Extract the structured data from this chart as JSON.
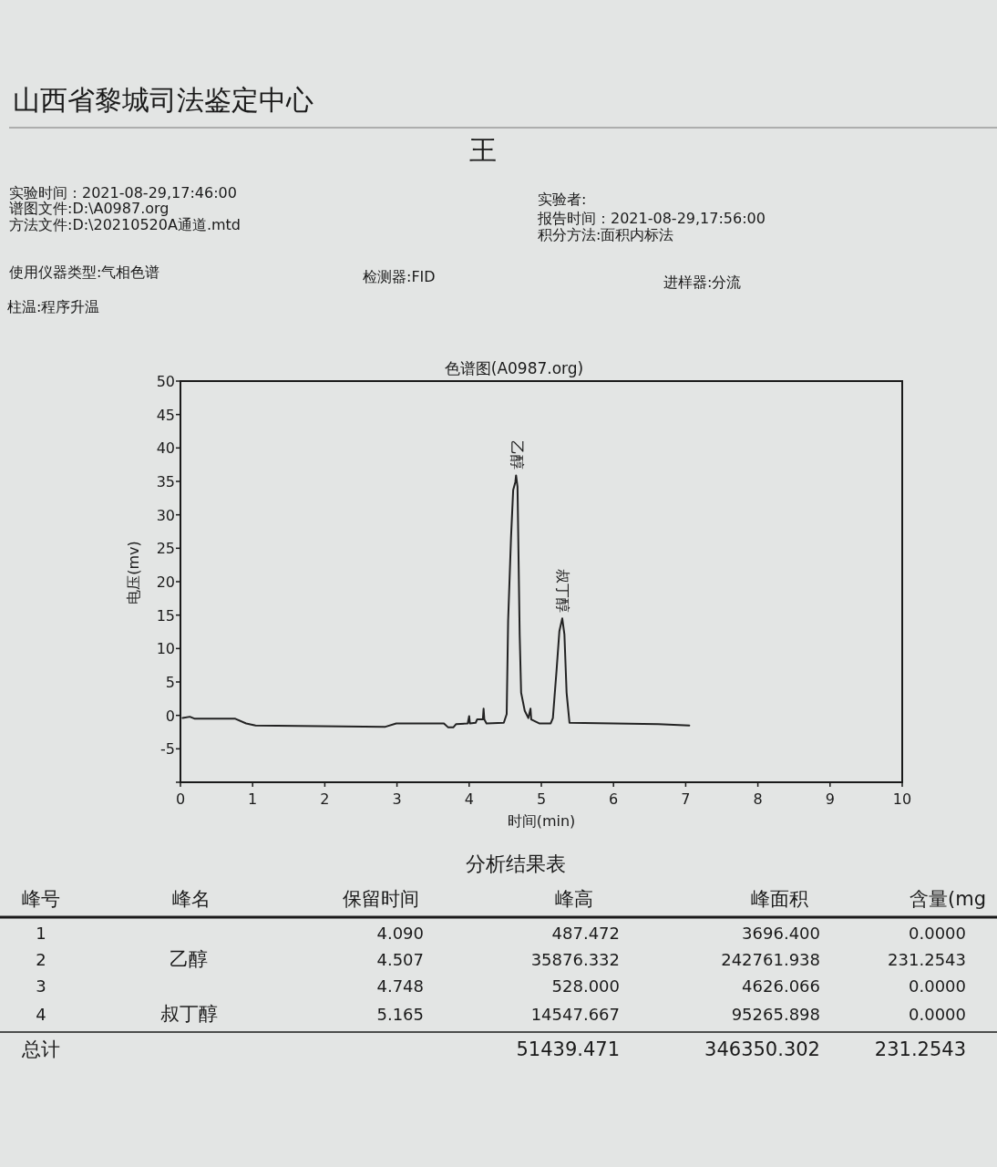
{
  "chart_data": {
    "type": "line",
    "title": "色谱图(A0987.org)",
    "xlabel": "时间(min)",
    "ylabel": "电压(mv)",
    "xlim": [
      0,
      10
    ],
    "xticks": [
      0,
      1,
      2,
      3,
      4,
      5,
      6,
      7,
      8,
      9,
      10
    ],
    "ylim": [
      -10,
      50
    ],
    "yticks": [
      {
        "value": -10,
        "label": null
      },
      -5,
      0,
      5,
      10,
      15,
      20,
      25,
      30,
      35,
      40,
      45,
      50
    ],
    "series": [
      {
        "color": "#222222",
        "x": [
          0.03,
          0.13,
          0.2,
          0.76,
          0.91,
          1.04,
          2.84,
          2.99,
          3.65,
          3.71,
          3.78,
          3.82,
          3.98,
          4.0,
          4.01,
          4.09,
          4.11,
          4.19,
          4.2,
          4.21,
          4.24,
          4.48,
          4.52,
          4.54,
          4.58,
          4.61,
          4.64,
          4.65,
          4.67,
          4.7,
          4.72,
          4.77,
          4.82,
          4.85,
          4.86,
          4.97,
          5.13,
          5.16,
          5.21,
          5.25,
          5.29,
          5.32,
          5.35,
          5.39,
          6.62,
          7.05
        ],
        "values": [
          -0.4,
          -0.2,
          -0.5,
          -0.5,
          -1.2,
          -1.5,
          -1.7,
          -1.2,
          -1.2,
          -1.8,
          -1.8,
          -1.3,
          -1.2,
          -0.1,
          -1.2,
          -1.1,
          -0.6,
          -0.6,
          1.0,
          -0.6,
          -1.2,
          -1.1,
          0.2,
          14.2,
          26.6,
          33.7,
          34.9,
          35.9,
          34.2,
          12.1,
          3.4,
          0.7,
          -0.4,
          1.0,
          -0.6,
          -1.2,
          -1.2,
          -0.4,
          6.6,
          12.6,
          14.5,
          12.1,
          3.4,
          -1.1,
          -1.3,
          -1.5
        ]
      }
    ],
    "annotations": [
      "山西省黎城司法鉴定中心",
      "王",
      "实验时间：2021-08-29,17:46:00",
      "谱图文件:D:\\A0987.org",
      "方法文件:D:\\20210520A通道.mtd",
      "实验者:",
      "报告时间：2021-08-29,17:56:00",
      "积分方法:面积内标法",
      "使用仪器类型:气相色谱",
      "检测器:FID",
      "进样器:分流",
      "柱温:程序升温",
      {
        "text": "乙醇",
        "x": 4.65,
        "y": 35.9
      },
      {
        "text": "叔丁醇",
        "x": 5.29,
        "y": 14.5
      },
      "分析结果表",
      "峰号",
      "峰名",
      "保留时间",
      "峰高",
      "峰面积",
      "含量(mg",
      "1",
      "4.090",
      "487.472",
      "3696.400",
      "0.0000",
      "2",
      "乙醇",
      "4.507",
      "35876.332",
      "242761.938",
      "231.2543",
      "3",
      "4.748",
      "528.000",
      "4626.066",
      "0.0000",
      "4",
      "叔丁醇",
      "5.165",
      "14547.667",
      "95265.898",
      "0.0000",
      "总计",
      "51439.471",
      "346350.302",
      "231.2543"
    ]
  }
}
